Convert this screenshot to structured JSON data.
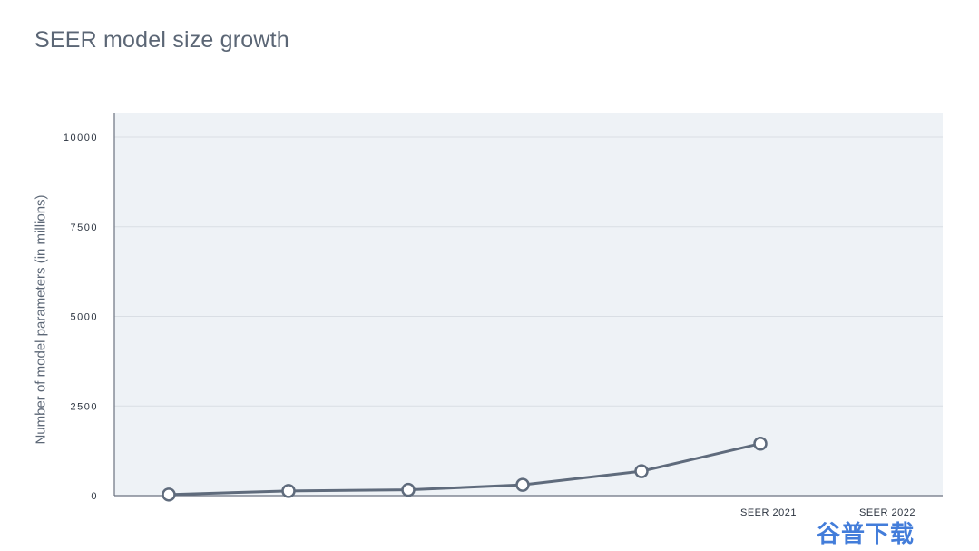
{
  "chart_data": {
    "type": "line",
    "title": "SEER model size growth",
    "xlabel": "",
    "ylabel": "Number of model parameters (in millions)",
    "ylim": [
      0,
      10000
    ],
    "yticks": [
      0,
      2500,
      5000,
      7500,
      10000
    ],
    "ytick_labels": [
      "0",
      "2500",
      "5000",
      "7500",
      "10000"
    ],
    "categories": [
      "",
      "",
      "",
      "",
      "",
      "SEER 2021",
      "SEER 2022"
    ],
    "series": [
      {
        "values": [
          30,
          130,
          160,
          300,
          680,
          1450,
          null
        ]
      }
    ],
    "grid": true,
    "legend": "none",
    "colors": {
      "line": "#5f6b7c",
      "plot_background": "#eef2f6",
      "grid": "#d9dee4",
      "axis": "#6b7280",
      "marker_fill": "#ffffff"
    }
  },
  "watermark": {
    "text": "谷普下载"
  }
}
